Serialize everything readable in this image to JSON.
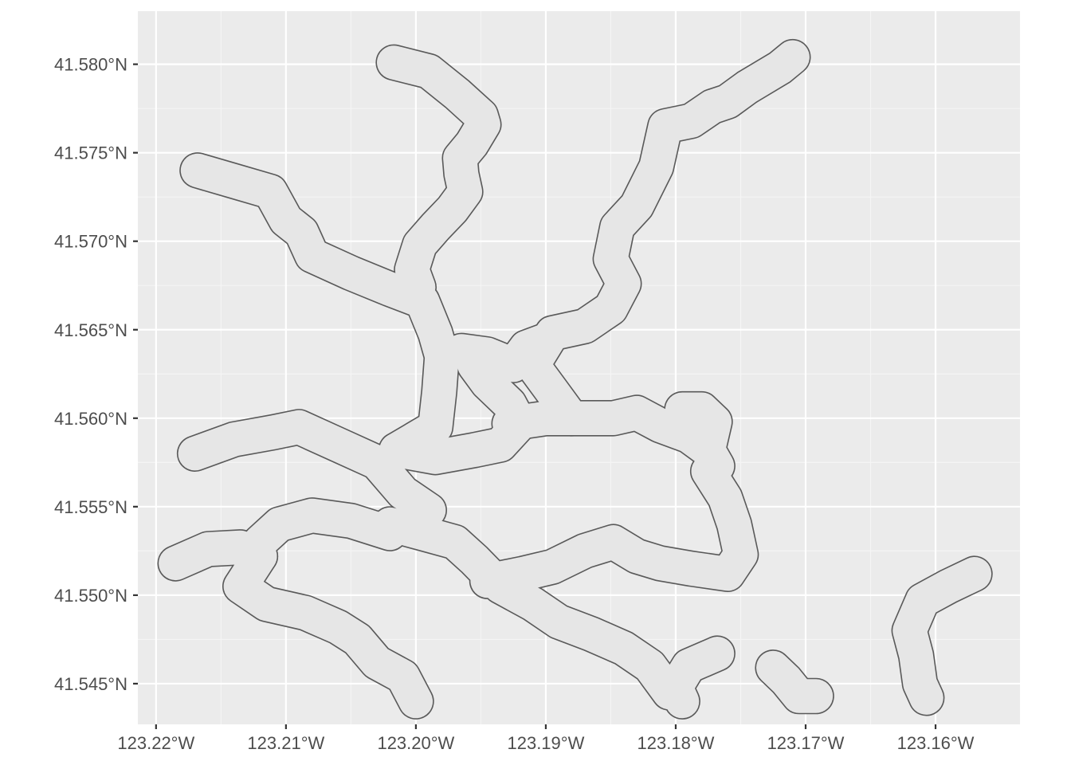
{
  "chart_data": {
    "type": "map",
    "title": "",
    "xlabel": "",
    "ylabel": "",
    "xlim": [
      -123.2214,
      -123.1535
    ],
    "ylim": [
      41.5427,
      41.583
    ],
    "x_ticks": [
      {
        "value": -123.22,
        "label": "123.22°W"
      },
      {
        "value": -123.21,
        "label": "123.21°W"
      },
      {
        "value": -123.2,
        "label": "123.20°W"
      },
      {
        "value": -123.19,
        "label": "123.19°W"
      },
      {
        "value": -123.18,
        "label": "123.18°W"
      },
      {
        "value": -123.17,
        "label": "123.17°W"
      },
      {
        "value": -123.16,
        "label": "123.16°W"
      }
    ],
    "y_ticks": [
      {
        "value": 41.545,
        "label": "41.545°N"
      },
      {
        "value": 41.55,
        "label": "41.550°N"
      },
      {
        "value": 41.555,
        "label": "41.555°N"
      },
      {
        "value": 41.56,
        "label": "41.560°N"
      },
      {
        "value": 41.565,
        "label": "41.565°N"
      },
      {
        "value": 41.57,
        "label": "41.570°N"
      },
      {
        "value": 41.575,
        "label": "41.575°N"
      },
      {
        "value": 41.58,
        "label": "41.580°N"
      }
    ],
    "grid": true,
    "panel_color": "#EBEBEB",
    "fill_color": "#E6E6E6",
    "outline_color": "#595959",
    "buffer_width_deg": 0.0026,
    "features": [
      {
        "coords": [
          [
            -123.2017,
            41.5801
          ],
          [
            -123.199,
            41.5796
          ],
          [
            -123.1968,
            41.5783
          ],
          [
            -123.195,
            41.5771
          ],
          [
            -123.1948,
            41.5766
          ],
          [
            -123.1957,
            41.5755
          ],
          [
            -123.1966,
            41.5747
          ],
          [
            -123.1965,
            41.5738
          ],
          [
            -123.1962,
            41.5728
          ],
          [
            -123.1972,
            41.5718
          ],
          [
            -123.1985,
            41.5708
          ],
          [
            -123.1997,
            41.5698
          ],
          [
            -123.2003,
            41.5684
          ],
          [
            -123.1998,
            41.5674
          ]
        ]
      },
      {
        "coords": [
          [
            -123.2168,
            41.574
          ],
          [
            -123.214,
            41.5734
          ],
          [
            -123.2112,
            41.5728
          ],
          [
            -123.21,
            41.5712
          ],
          [
            -123.2088,
            41.5705
          ],
          [
            -123.208,
            41.5692
          ],
          [
            -123.205,
            41.5682
          ],
          [
            -123.202,
            41.5673
          ],
          [
            -123.1995,
            41.5666
          ],
          [
            -123.1985,
            41.5648
          ],
          [
            -123.198,
            41.5635
          ],
          [
            -123.1982,
            41.5615
          ],
          [
            -123.1985,
            41.5595
          ],
          [
            -123.2015,
            41.5582
          ]
        ]
      },
      {
        "coords": [
          [
            -123.171,
            41.5804
          ],
          [
            -123.172,
            41.5798
          ],
          [
            -123.1745,
            41.5787
          ],
          [
            -123.176,
            41.5779
          ],
          [
            -123.1772,
            41.5776
          ],
          [
            -123.1788,
            41.5768
          ],
          [
            -123.1808,
            41.5765
          ],
          [
            -123.1815,
            41.5742
          ],
          [
            -123.183,
            41.572
          ],
          [
            -123.1845,
            41.5708
          ],
          [
            -123.185,
            41.569
          ],
          [
            -123.184,
            41.5676
          ],
          [
            -123.185,
            41.5662
          ],
          [
            -123.187,
            41.5652
          ],
          [
            -123.1895,
            41.5648
          ],
          [
            -123.191,
            41.563
          ],
          [
            -123.1895,
            41.5615
          ],
          [
            -123.188,
            41.56
          ]
        ]
      },
      {
        "coords": [
          [
            -123.217,
            41.558
          ],
          [
            -123.214,
            41.5588
          ],
          [
            -123.211,
            41.5592
          ],
          [
            -123.209,
            41.5595
          ],
          [
            -123.206,
            41.5585
          ],
          [
            -123.203,
            41.5575
          ],
          [
            -123.201,
            41.5558
          ],
          [
            -123.199,
            41.5548
          ]
        ]
      },
      {
        "coords": [
          [
            -123.2015,
            41.5582
          ],
          [
            -123.1985,
            41.5578
          ],
          [
            -123.1955,
            41.5582
          ],
          [
            -123.1935,
            41.5585
          ],
          [
            -123.192,
            41.5597
          ],
          [
            -123.1928,
            41.5608
          ],
          [
            -123.1945,
            41.562
          ],
          [
            -123.1955,
            41.563
          ]
        ]
      },
      {
        "coords": [
          [
            -123.1965,
            41.5638
          ],
          [
            -123.1945,
            41.5636
          ],
          [
            -123.1925,
            41.563
          ],
          [
            -123.1915,
            41.564
          ],
          [
            -123.19,
            41.5644
          ]
        ]
      },
      {
        "coords": [
          [
            -123.1928,
            41.5597
          ],
          [
            -123.19,
            41.56
          ],
          [
            -123.187,
            41.56
          ],
          [
            -123.1848,
            41.56
          ],
          [
            -123.183,
            41.5603
          ],
          [
            -123.1812,
            41.5596
          ],
          [
            -123.179,
            41.559
          ],
          [
            -123.1775,
            41.5582
          ],
          [
            -123.1768,
            41.5573
          ]
        ]
      },
      {
        "coords": [
          [
            -123.1775,
            41.5582
          ],
          [
            -123.177,
            41.5598
          ],
          [
            -123.178,
            41.5605
          ],
          [
            -123.1795,
            41.5605
          ]
        ]
      },
      {
        "coords": [
          [
            -123.1775,
            41.557
          ],
          [
            -123.1762,
            41.5555
          ],
          [
            -123.1755,
            41.554
          ],
          [
            -123.175,
            41.5523
          ],
          [
            -123.176,
            41.5512
          ],
          [
            -123.1788,
            41.5515
          ],
          [
            -123.1812,
            41.5518
          ],
          [
            -123.183,
            41.5522
          ],
          [
            -123.1848,
            41.553
          ],
          [
            -123.187,
            41.5525
          ],
          [
            -123.1895,
            41.5516
          ],
          [
            -123.1918,
            41.5512
          ],
          [
            -123.1945,
            41.5508
          ]
        ]
      },
      {
        "coords": [
          [
            -123.202,
            41.5535
          ],
          [
            -123.205,
            41.5542
          ],
          [
            -123.208,
            41.5545
          ],
          [
            -123.2105,
            41.554
          ],
          [
            -123.212,
            41.553
          ]
        ]
      },
      {
        "coords": [
          [
            -123.2185,
            41.5518
          ],
          [
            -123.216,
            41.5526
          ],
          [
            -123.2135,
            41.5527
          ],
          [
            -123.212,
            41.5522
          ]
        ]
      },
      {
        "coords": [
          [
            -123.212,
            41.5522
          ],
          [
            -123.2135,
            41.5505
          ],
          [
            -123.2115,
            41.5495
          ],
          [
            -123.2085,
            41.549
          ],
          [
            -123.206,
            41.5482
          ],
          [
            -123.2045,
            41.5475
          ],
          [
            -123.203,
            41.5462
          ],
          [
            -123.201,
            41.5454
          ],
          [
            -123.2,
            41.544
          ]
        ]
      },
      {
        "coords": [
          [
            -123.202,
            41.554
          ],
          [
            -123.1995,
            41.5535
          ],
          [
            -123.197,
            41.553
          ],
          [
            -123.1955,
            41.552
          ],
          [
            -123.1935,
            41.5505
          ],
          [
            -123.191,
            41.5495
          ],
          [
            -123.189,
            41.5485
          ],
          [
            -123.1865,
            41.5478
          ],
          [
            -123.184,
            41.547
          ],
          [
            -123.182,
            41.546
          ],
          [
            -123.1805,
            41.5445
          ]
        ]
      },
      {
        "coords": [
          [
            -123.1768,
            41.5467
          ],
          [
            -123.179,
            41.546
          ],
          [
            -123.18,
            41.5448
          ],
          [
            -123.1795,
            41.544
          ]
        ]
      },
      {
        "coords": [
          [
            -123.1725,
            41.5459
          ],
          [
            -123.1715,
            41.5452
          ],
          [
            -123.1705,
            41.5443
          ],
          [
            -123.1692,
            41.5443
          ]
        ]
      },
      {
        "coords": [
          [
            -123.157,
            41.5512
          ],
          [
            -123.159,
            41.5505
          ],
          [
            -123.161,
            41.5497
          ],
          [
            -123.162,
            41.548
          ],
          [
            -123.1615,
            41.5466
          ],
          [
            -123.1612,
            41.545
          ],
          [
            -123.1607,
            41.5442
          ]
        ]
      }
    ]
  }
}
